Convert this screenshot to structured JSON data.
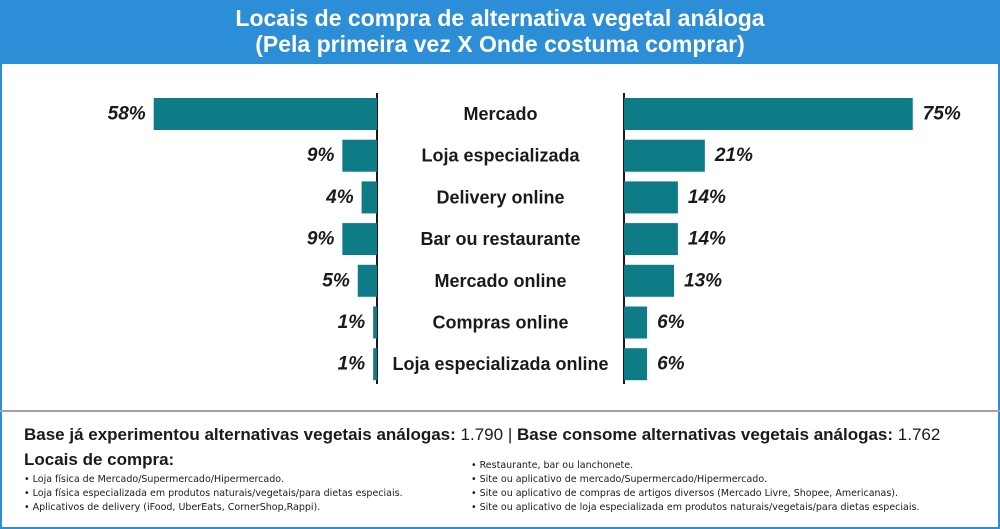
{
  "header": {
    "title_line1": "Locais de compra de alternativa vegetal análoga",
    "title_line2": "(Pela primeira vez X Onde costuma comprar)"
  },
  "colors": {
    "header_bg": "#2c8ed6",
    "bar": "#0e7c86",
    "axis": "#1a1a1a"
  },
  "chart_data": {
    "type": "bar",
    "orientation": "horizontal-butterfly",
    "categories": [
      "Mercado",
      "Loja especializada",
      "Delivery online",
      "Bar ou restaurante",
      "Mercado online",
      "Compras online",
      "Loja especializada online"
    ],
    "series": [
      {
        "values": [
          58,
          9,
          4,
          9,
          5,
          1,
          1
        ],
        "labels": [
          "58%",
          "9%",
          "4%",
          "9%",
          "5%",
          "1%",
          "1%"
        ]
      },
      {
        "values": [
          75,
          21,
          14,
          14,
          13,
          6,
          6
        ],
        "labels": [
          "75%",
          "21%",
          "14%",
          "14%",
          "13%",
          "6%",
          "6%"
        ]
      }
    ],
    "unit": "%",
    "grid": false,
    "legend": "none"
  },
  "footer": {
    "base1_label": "Base já experimentou alternativas vegetais análogas:",
    "base1_value": "1.790",
    "separator": "|",
    "base2_label": "Base consome alternativas vegetais análogas:",
    "base2_value": "1.762",
    "locais_title": "Locais de compra:",
    "legend_left": [
      "Loja física de Mercado/Supermercado/Hipermercado.",
      "Loja física especializada em produtos naturais/vegetais/para dietas especiais.",
      "Aplicativos de delivery (iFood, UberEats, CornerShop,Rappi)."
    ],
    "legend_right": [
      "Restaurante, bar ou lanchonete.",
      "Site ou aplicativo de mercado/Supermercado/Hipermercado.",
      "Site ou aplicativo de compras de artigos diversos (Mercado Livre, Shopee, Americanas).",
      "Site ou aplicativo de loja especializada em produtos naturais/vegetais/para dietas especiais."
    ]
  }
}
